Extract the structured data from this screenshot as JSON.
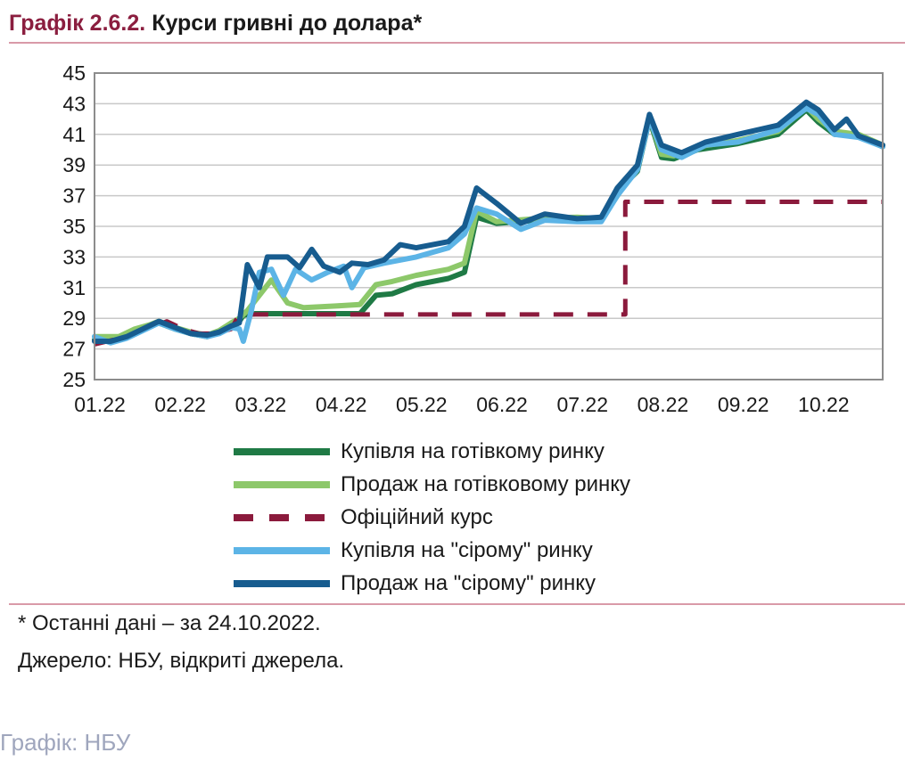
{
  "header": {
    "number": "Графік 2.6.2.",
    "title": "Курси гривні до долара*"
  },
  "notes": {
    "last_data": "* Останні дані – за 24.10.2022.",
    "source": "Джерело: НБУ, відкриті джерела."
  },
  "credit": "Графік: НБУ",
  "chart_data": {
    "type": "line",
    "xlabel": "",
    "ylabel": "",
    "ylim": [
      25,
      45
    ],
    "xlim": [
      0,
      9.8
    ],
    "yticks": [
      25,
      27,
      29,
      31,
      33,
      35,
      37,
      39,
      41,
      43,
      45
    ],
    "categories": [
      "01.22",
      "02.22",
      "03.22",
      "04.22",
      "05.22",
      "06.22",
      "07.22",
      "08.22",
      "09.22",
      "10.22"
    ],
    "grid": true,
    "legend_position": "bottom",
    "series": [
      {
        "name": "Купівля на готівкому ринку",
        "color": "#1f7a45",
        "dash": false,
        "points": [
          [
            0,
            27.6
          ],
          [
            0.3,
            27.7
          ],
          [
            0.5,
            28.1
          ],
          [
            0.7,
            28.5
          ],
          [
            0.8,
            28.7
          ],
          [
            1.0,
            28.3
          ],
          [
            1.2,
            28.0
          ],
          [
            1.4,
            27.8
          ],
          [
            1.55,
            28.1
          ],
          [
            1.7,
            28.5
          ],
          [
            1.8,
            28.8
          ],
          [
            1.85,
            29.2
          ],
          [
            2.0,
            29.3
          ],
          [
            2.5,
            29.3
          ],
          [
            3.0,
            29.3
          ],
          [
            3.3,
            29.3
          ],
          [
            3.5,
            30.5
          ],
          [
            3.7,
            30.6
          ],
          [
            4.0,
            31.2
          ],
          [
            4.4,
            31.6
          ],
          [
            4.6,
            32.0
          ],
          [
            4.75,
            35.6
          ],
          [
            5.0,
            35.2
          ],
          [
            5.5,
            35.4
          ],
          [
            6.0,
            35.5
          ],
          [
            6.3,
            35.4
          ],
          [
            6.6,
            37.8
          ],
          [
            6.75,
            38.6
          ],
          [
            6.9,
            42.0
          ],
          [
            7.05,
            39.5
          ],
          [
            7.2,
            39.4
          ],
          [
            7.5,
            40.0
          ],
          [
            8.0,
            40.4
          ],
          [
            8.5,
            41.0
          ],
          [
            8.85,
            42.6
          ],
          [
            9.0,
            41.8
          ],
          [
            9.2,
            41.0
          ],
          [
            9.5,
            40.9
          ],
          [
            9.8,
            40.2
          ]
        ]
      },
      {
        "name": "Продаж на готівковому ринку",
        "color": "#8dc86a",
        "dash": false,
        "points": [
          [
            0,
            27.8
          ],
          [
            0.3,
            27.8
          ],
          [
            0.5,
            28.3
          ],
          [
            0.7,
            28.6
          ],
          [
            0.8,
            28.8
          ],
          [
            1.0,
            28.4
          ],
          [
            1.2,
            28.1
          ],
          [
            1.4,
            27.9
          ],
          [
            1.55,
            28.2
          ],
          [
            1.7,
            28.7
          ],
          [
            1.8,
            29.0
          ],
          [
            1.9,
            29.5
          ],
          [
            2.2,
            31.5
          ],
          [
            2.4,
            30.0
          ],
          [
            2.6,
            29.7
          ],
          [
            3.0,
            29.8
          ],
          [
            3.3,
            29.9
          ],
          [
            3.5,
            31.2
          ],
          [
            3.7,
            31.4
          ],
          [
            4.0,
            31.8
          ],
          [
            4.4,
            32.2
          ],
          [
            4.6,
            32.6
          ],
          [
            4.75,
            36.0
          ],
          [
            5.0,
            35.3
          ],
          [
            5.5,
            35.5
          ],
          [
            6.0,
            35.6
          ],
          [
            6.3,
            35.5
          ],
          [
            6.6,
            38.0
          ],
          [
            6.75,
            38.9
          ],
          [
            6.9,
            42.1
          ],
          [
            7.05,
            39.7
          ],
          [
            7.2,
            39.6
          ],
          [
            7.5,
            40.2
          ],
          [
            8.0,
            40.6
          ],
          [
            8.5,
            41.2
          ],
          [
            8.85,
            42.8
          ],
          [
            9.0,
            42.0
          ],
          [
            9.2,
            41.2
          ],
          [
            9.5,
            41.0
          ],
          [
            9.8,
            40.3
          ]
        ]
      },
      {
        "name": "Офіційний курс",
        "color": "#8b1a3c",
        "dash": true,
        "points": [
          [
            0,
            27.3
          ],
          [
            0.4,
            27.8
          ],
          [
            0.7,
            28.4
          ],
          [
            0.9,
            28.8
          ],
          [
            1.1,
            28.3
          ],
          [
            1.3,
            28.0
          ],
          [
            1.5,
            28.0
          ],
          [
            1.7,
            28.3
          ],
          [
            1.8,
            29.25
          ],
          [
            6.6,
            29.25
          ],
          [
            6.6,
            36.6
          ],
          [
            9.8,
            36.6
          ]
        ]
      },
      {
        "name": "Купівля на \"сірому\" ринку",
        "color": "#5cb4e6",
        "dash": false,
        "points": [
          [
            0,
            27.8
          ],
          [
            0.2,
            27.4
          ],
          [
            0.4,
            27.7
          ],
          [
            0.6,
            28.2
          ],
          [
            0.8,
            28.7
          ],
          [
            1.0,
            28.3
          ],
          [
            1.2,
            28.0
          ],
          [
            1.4,
            27.8
          ],
          [
            1.55,
            28.0
          ],
          [
            1.7,
            28.4
          ],
          [
            1.8,
            28.3
          ],
          [
            1.85,
            27.5
          ],
          [
            1.95,
            29.5
          ],
          [
            2.05,
            32.0
          ],
          [
            2.2,
            32.2
          ],
          [
            2.35,
            30.5
          ],
          [
            2.5,
            32.2
          ],
          [
            2.7,
            31.5
          ],
          [
            2.9,
            32.0
          ],
          [
            3.1,
            32.4
          ],
          [
            3.2,
            31.0
          ],
          [
            3.35,
            32.3
          ],
          [
            3.6,
            32.6
          ],
          [
            4.0,
            33.0
          ],
          [
            4.4,
            33.6
          ],
          [
            4.6,
            34.5
          ],
          [
            4.75,
            36.2
          ],
          [
            5.0,
            35.8
          ],
          [
            5.3,
            34.8
          ],
          [
            5.6,
            35.4
          ],
          [
            6.0,
            35.3
          ],
          [
            6.3,
            35.3
          ],
          [
            6.5,
            37.0
          ],
          [
            6.75,
            38.7
          ],
          [
            6.9,
            42.0
          ],
          [
            7.05,
            40.0
          ],
          [
            7.3,
            39.5
          ],
          [
            7.6,
            40.3
          ],
          [
            8.0,
            40.5
          ],
          [
            8.5,
            41.3
          ],
          [
            8.85,
            42.7
          ],
          [
            9.0,
            42.3
          ],
          [
            9.2,
            41.0
          ],
          [
            9.5,
            40.8
          ],
          [
            9.8,
            40.2
          ]
        ]
      },
      {
        "name": "Продаж на \"сірому\" ринку",
        "color": "#175c8f",
        "dash": false,
        "points": [
          [
            0,
            27.5
          ],
          [
            0.2,
            27.5
          ],
          [
            0.4,
            27.8
          ],
          [
            0.6,
            28.3
          ],
          [
            0.8,
            28.8
          ],
          [
            1.0,
            28.4
          ],
          [
            1.2,
            28.0
          ],
          [
            1.4,
            27.9
          ],
          [
            1.55,
            28.1
          ],
          [
            1.7,
            28.5
          ],
          [
            1.8,
            28.7
          ],
          [
            1.9,
            32.5
          ],
          [
            2.05,
            31.0
          ],
          [
            2.15,
            33.0
          ],
          [
            2.4,
            33.0
          ],
          [
            2.55,
            32.3
          ],
          [
            2.7,
            33.5
          ],
          [
            2.85,
            32.4
          ],
          [
            3.05,
            32.0
          ],
          [
            3.2,
            32.6
          ],
          [
            3.4,
            32.5
          ],
          [
            3.6,
            32.8
          ],
          [
            3.8,
            33.8
          ],
          [
            4.0,
            33.6
          ],
          [
            4.4,
            34.0
          ],
          [
            4.6,
            35.0
          ],
          [
            4.75,
            37.5
          ],
          [
            5.0,
            36.5
          ],
          [
            5.3,
            35.2
          ],
          [
            5.6,
            35.8
          ],
          [
            6.0,
            35.5
          ],
          [
            6.3,
            35.6
          ],
          [
            6.5,
            37.5
          ],
          [
            6.75,
            39.0
          ],
          [
            6.9,
            42.3
          ],
          [
            7.05,
            40.3
          ],
          [
            7.3,
            39.8
          ],
          [
            7.6,
            40.5
          ],
          [
            8.0,
            41.0
          ],
          [
            8.5,
            41.6
          ],
          [
            8.85,
            43.1
          ],
          [
            9.0,
            42.6
          ],
          [
            9.2,
            41.3
          ],
          [
            9.35,
            42.0
          ],
          [
            9.5,
            40.9
          ],
          [
            9.8,
            40.3
          ]
        ]
      }
    ]
  }
}
